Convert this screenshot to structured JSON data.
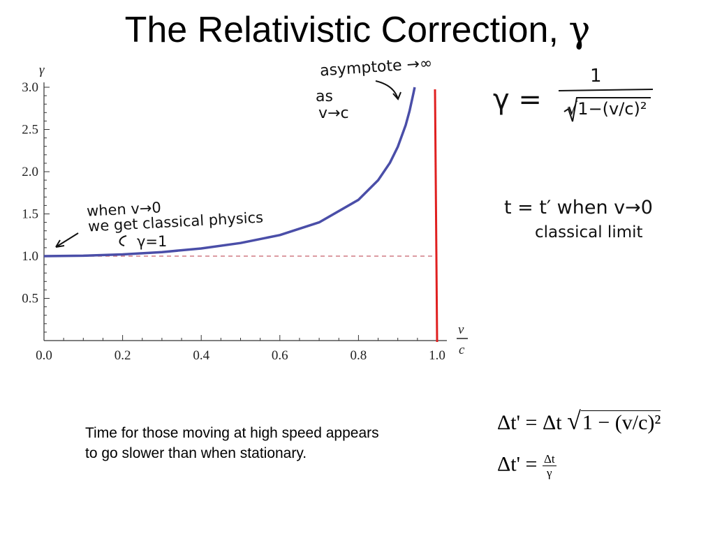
{
  "slide": {
    "title_text": "The Relativistic Correction,",
    "title_symbol": "γ",
    "caption_line1": "Time for those moving at high speed appears",
    "caption_line2": "to go slower than when stationary."
  },
  "annotations": {
    "asymptote": "asymptote →∞",
    "as": "as",
    "v_to_c": "v→c",
    "when_v_to_0": "when v→0",
    "classical": "we get classical physics",
    "gamma_eq_1": "γ=1",
    "gamma_lhs": "γ =",
    "gamma_num": "1",
    "gamma_den": "√1−(v/c)²",
    "t_eq": "t = t′  when  v→0",
    "classical_limit": "classical limit"
  },
  "equations": {
    "eq1_lhs": "Δt' = Δt",
    "eq1_rad": "1 − (v/c)²",
    "eq2_lhs": "Δt' =",
    "eq2_num": "Δt",
    "eq2_den": "γ"
  },
  "colors": {
    "curve": "#4a4ea8",
    "asymptote": "#e02020",
    "baseline": "#d07a84"
  },
  "chart_data": {
    "type": "line",
    "ylabel": "γ",
    "xlabel_num": "v",
    "xlabel_den": "c",
    "xlim": [
      0.0,
      1.0
    ],
    "ylim": [
      0.0,
      3.0
    ],
    "x_ticks": [
      "0.0",
      "0.2",
      "0.4",
      "0.6",
      "0.8",
      "1.0"
    ],
    "y_ticks": [
      "0.5",
      "1.0",
      "1.5",
      "2.0",
      "2.5",
      "3.0"
    ],
    "series": [
      {
        "x": [
          0.0,
          0.1,
          0.2,
          0.3,
          0.4,
          0.5,
          0.6,
          0.7,
          0.8,
          0.85,
          0.88,
          0.9,
          0.92,
          0.93,
          0.94,
          0.943
        ],
        "y": [
          1.0,
          1.005,
          1.021,
          1.048,
          1.091,
          1.155,
          1.25,
          1.4,
          1.667,
          1.898,
          2.105,
          2.294,
          2.551,
          2.721,
          2.931,
          3.0
        ]
      }
    ],
    "reference_lines": [
      {
        "orientation": "horizontal",
        "value": 1.0,
        "style": "dashed"
      },
      {
        "orientation": "vertical",
        "value": 1.0,
        "style": "solid"
      }
    ]
  }
}
